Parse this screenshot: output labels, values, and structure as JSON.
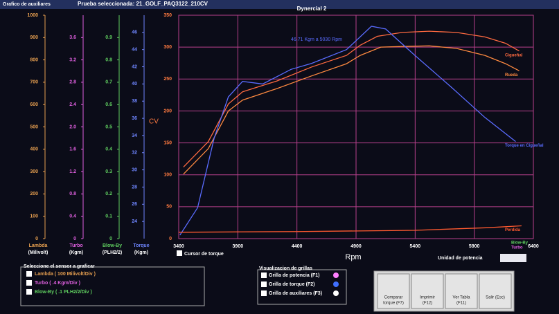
{
  "window": {
    "title_left": "Grafico de auxiliares",
    "title_test": "Prueba seleccionada: 21_GOLF_PAQ3122_210CV",
    "title_app": "Dynercial 2"
  },
  "chart_data": {
    "type": "line",
    "x_label": "Rpm",
    "y_label": "CV",
    "annotation": "46.71 Kgm a 5030 Rpm",
    "xlim": [
      3400,
      6400
    ],
    "xticks": [
      3400,
      3900,
      4400,
      4900,
      5400,
      5900,
      6400
    ],
    "ylim": [
      0,
      350
    ],
    "yticks": [
      0,
      50,
      100,
      150,
      200,
      250,
      300,
      350
    ],
    "y2lim": [
      22,
      48
    ],
    "y2ticks": [
      24,
      26,
      28,
      30,
      32,
      34,
      36,
      38,
      40,
      42,
      44,
      46
    ],
    "y2_name": "Torque",
    "y2_unit": "(Kgm)",
    "y2_color": "#6f86ff",
    "grid": true,
    "grid_color": "#b8408c",
    "aux_axes": [
      {
        "name": "Lambda",
        "unit": "(Milivolt)",
        "color": "#e8a050",
        "ylim": [
          0,
          1000
        ],
        "ticks": [
          0,
          100,
          200,
          300,
          400,
          500,
          600,
          700,
          800,
          900,
          1000
        ]
      },
      {
        "name": "Turbo",
        "unit": "(Kgm)",
        "color": "#e060e0",
        "ylim": [
          0,
          4
        ],
        "ticks": [
          0,
          0.4,
          0.8,
          1.2,
          1.6,
          {
            "value": 2,
            "label": "2.0"
          },
          2.4,
          2.8,
          3.2,
          3.6
        ]
      },
      {
        "name": "Blow-By",
        "unit": "(PLH2/2)",
        "color": "#60d060",
        "ylim": [
          0,
          1
        ],
        "ticks": [
          0,
          0.1,
          0.2,
          0.3,
          0.4,
          0.5,
          0.6,
          0.7,
          0.8,
          0.9
        ]
      }
    ],
    "series": [
      {
        "name": "Cigueñal",
        "color": "#ff6a40",
        "x": [
          3440,
          3650,
          3820,
          3940,
          4230,
          4525,
          4820,
          4935,
          5080,
          5290,
          5520,
          5750,
          5990,
          6165,
          6280
        ],
        "values": [
          112,
          152,
          211,
          230,
          247,
          269,
          287,
          303,
          317,
          323,
          325,
          323,
          316,
          306,
          294
        ]
      },
      {
        "name": "Rueda",
        "color": "#ff8a40",
        "x": [
          3440,
          3650,
          3820,
          3940,
          4230,
          4525,
          4820,
          4935,
          5110,
          5290,
          5520,
          5750,
          5990,
          6165,
          6280
        ],
        "values": [
          101,
          141,
          200,
          217,
          235,
          255,
          274,
          287,
          300,
          301,
          302,
          298,
          287,
          274,
          263
        ]
      },
      {
        "name": "Torque en Cigueñal",
        "color": "#5a6cff",
        "axis": "y2",
        "x": [
          3410,
          3560,
          3700,
          3820,
          3940,
          4110,
          4350,
          4525,
          4820,
          5030,
          5150,
          5400,
          5700,
          5990,
          6250
        ],
        "values": [
          22.4,
          25.6,
          33.7,
          38.5,
          40.3,
          40.0,
          41.7,
          42.4,
          44.0,
          46.71,
          46.4,
          43.3,
          39.7,
          36.1,
          33.3
        ]
      },
      {
        "name": "Perdida",
        "color": "#ff5a30",
        "x": [
          3400,
          4400,
          5400,
          6000,
          6300
        ],
        "values": [
          10,
          11,
          13,
          17,
          20
        ]
      }
    ]
  },
  "controls": {
    "cursor": "Cursor de torque",
    "power_unit": "Unidad de potencia",
    "sensor_panel": {
      "title": "Seleccione el sensor a graficar",
      "items": [
        "Lambda ( 100 Milivolt/Div )",
        "Turbo ( .4 Kgm/Div )",
        "Blow-By ( .1 PLH2/2/Div )"
      ]
    },
    "grid_panel": {
      "title": "Visualizacion de grillas",
      "items": [
        "Grilla de potencia (F1)",
        "Grilla de torque (F2)",
        "Grilla de auxiliares (F3)"
      ]
    },
    "buttons": [
      {
        "lines": [
          "Comparar",
          "torque (F7)"
        ]
      },
      {
        "lines": [
          "Imprimir",
          "(F12)"
        ]
      },
      {
        "lines": [
          "Ver Tabla",
          "(F11)"
        ]
      },
      {
        "lines": [
          "Salir (Esc)"
        ]
      }
    ]
  }
}
